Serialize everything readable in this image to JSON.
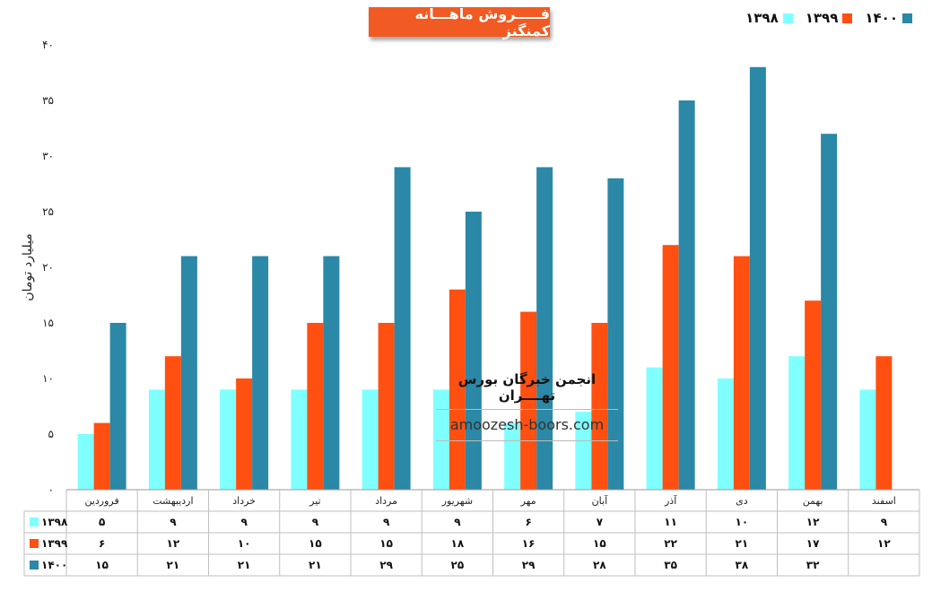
{
  "chart_data": {
    "type": "bar",
    "title": "فـــــروش ماهـــانه کمنگنز",
    "ylabel": "میلیارد تومان",
    "ylim": [
      0,
      40
    ],
    "yticks": [
      "۰",
      "۵",
      "۱۰",
      "۱۵",
      "۲۰",
      "۲۵",
      "۳۰",
      "۳۵",
      "۴۰"
    ],
    "categories": [
      "فروردین",
      "اردیبهشت",
      "خرداد",
      "تیر",
      "مرداد",
      "شهریور",
      "مهر",
      "آبان",
      "آذر",
      "دی",
      "بهمن",
      "اسفند"
    ],
    "series": [
      {
        "name": "۱۳۹۸",
        "color": "#80ffff",
        "values": [
          5,
          9,
          9,
          9,
          9,
          9,
          6,
          7,
          11,
          10,
          12,
          9
        ],
        "labels": [
          "۵",
          "۹",
          "۹",
          "۹",
          "۹",
          "۹",
          "۶",
          "۷",
          "۱۱",
          "۱۰",
          "۱۲",
          "۹"
        ]
      },
      {
        "name": "۱۳۹۹",
        "color": "#ff5011",
        "values": [
          6,
          12,
          10,
          15,
          15,
          18,
          16,
          15,
          22,
          21,
          17,
          12
        ],
        "labels": [
          "۶",
          "۱۲",
          "۱۰",
          "۱۵",
          "۱۵",
          "۱۸",
          "۱۶",
          "۱۵",
          "۲۲",
          "۲۱",
          "۱۷",
          "۱۲"
        ]
      },
      {
        "name": "۱۴۰۰",
        "color": "#2b88a6",
        "values": [
          15,
          21,
          21,
          21,
          29,
          25,
          29,
          28,
          35,
          38,
          32,
          null
        ],
        "labels": [
          "۱۵",
          "۲۱",
          "۲۱",
          "۲۱",
          "۲۹",
          "۲۵",
          "۲۹",
          "۲۸",
          "۳۵",
          "۳۸",
          "۳۲",
          ""
        ]
      }
    ],
    "legend": "top-right",
    "data_table": true
  },
  "watermark": {
    "title": "انجمن خبرگان بورس تهــــران",
    "site": "amoozesh-boors.com"
  }
}
